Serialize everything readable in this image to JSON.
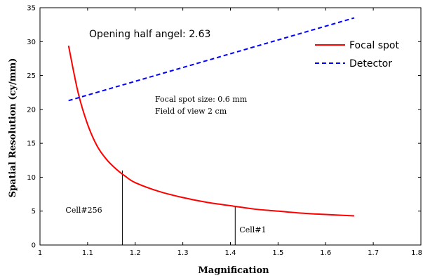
{
  "chart_data": {
    "type": "line",
    "xlabel": "Magnification",
    "ylabel": "Spatial Resolution (cy/mm)",
    "xlim": [
      1,
      1.8
    ],
    "ylim": [
      0,
      35
    ],
    "x_ticks": [
      "1",
      "1.1",
      "1.2",
      "1.3",
      "1.4",
      "1.5",
      "1.6",
      "1.7",
      "1.8"
    ],
    "y_ticks": [
      "0",
      "5",
      "10",
      "15",
      "20",
      "25",
      "30",
      "35"
    ],
    "grid": false,
    "legend_position": "top-right",
    "series": [
      {
        "name": "Focal spot",
        "color": "#ff0000",
        "style": "solid",
        "x": [
          1.06,
          1.08,
          1.1,
          1.12,
          1.14,
          1.16,
          1.18,
          1.2,
          1.25,
          1.3,
          1.35,
          1.4,
          1.45,
          1.5,
          1.55,
          1.6,
          1.66
        ],
        "y": [
          29.4,
          22.5,
          17.8,
          14.6,
          12.6,
          11.2,
          10.1,
          9.2,
          7.9,
          7.0,
          6.3,
          5.8,
          5.3,
          5.0,
          4.7,
          4.5,
          4.3
        ]
      },
      {
        "name": "Detector",
        "color": "#0000ff",
        "style": "dashed",
        "x": [
          1.06,
          1.66
        ],
        "y": [
          21.3,
          33.5
        ]
      }
    ],
    "markers": [
      {
        "label": "Cell#256",
        "x": 1.173,
        "y": 11.0
      },
      {
        "label": "Cell#1",
        "x": 1.41,
        "y": 5.7
      }
    ],
    "annotations": [
      "Opening half angel: 2.63",
      "Focal spot size: 0.6 mm",
      "Field of view 2 cm"
    ]
  }
}
